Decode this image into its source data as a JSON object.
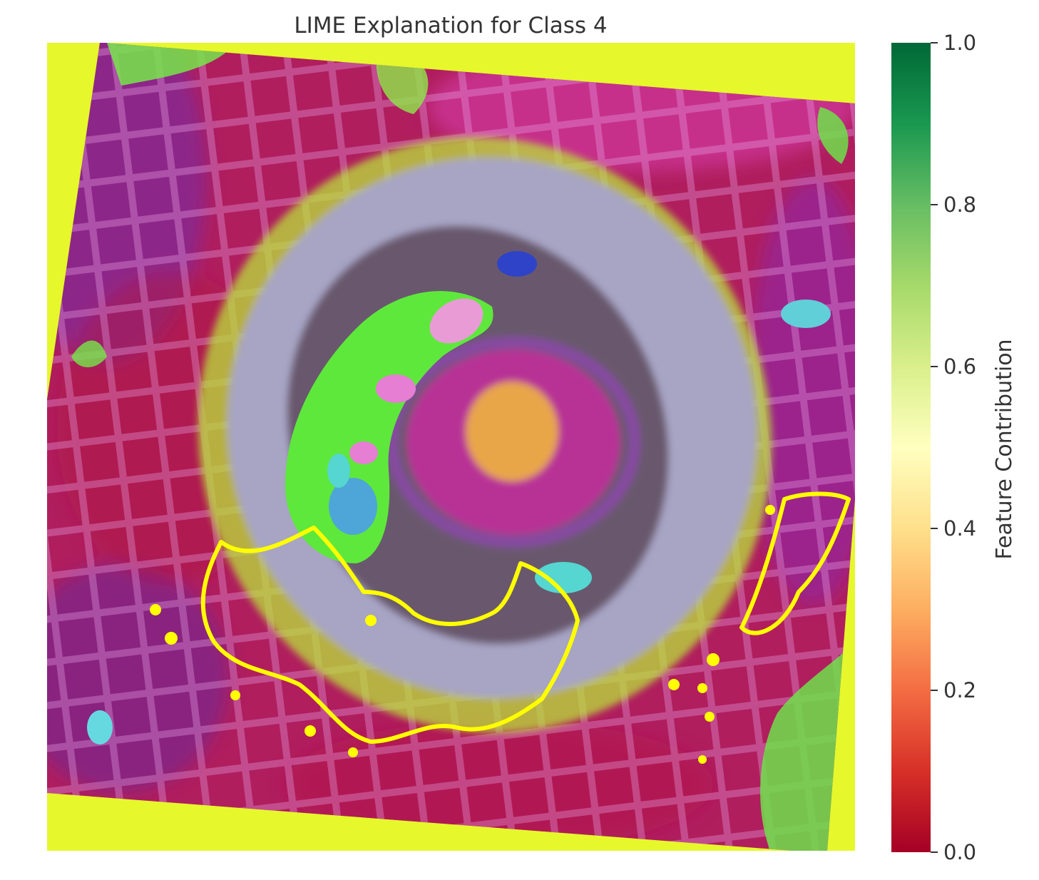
{
  "chart_data": {
    "type": "heatmap",
    "title": "LIME Explanation for Class 4",
    "xlabel": "",
    "ylabel": "",
    "grid": false,
    "colorbar": {
      "label": "Feature Contribution",
      "colormap": "RdYlGn",
      "range": [
        0.0,
        1.0
      ],
      "ticks": [
        0.0,
        0.2,
        0.4,
        0.6,
        0.8,
        1.0
      ],
      "tick_labels": [
        "0.0",
        "0.2",
        "0.4",
        "0.6",
        "0.8",
        "1.0"
      ],
      "color_stops": [
        {
          "value": 0.0,
          "color": "#a50026"
        },
        {
          "value": 0.1,
          "color": "#d73027"
        },
        {
          "value": 0.2,
          "color": "#f46d43"
        },
        {
          "value": 0.3,
          "color": "#fdae61"
        },
        {
          "value": 0.4,
          "color": "#fee08b"
        },
        {
          "value": 0.5,
          "color": "#ffffbf"
        },
        {
          "value": 0.6,
          "color": "#d9ef8b"
        },
        {
          "value": 0.7,
          "color": "#a6d96a"
        },
        {
          "value": 0.8,
          "color": "#66bd63"
        },
        {
          "value": 0.9,
          "color": "#1a9850"
        },
        {
          "value": 1.0,
          "color": "#006837"
        }
      ]
    },
    "image": {
      "background_fill_color": "#e6f72c",
      "rotation_deg": -7,
      "base_color": "#b01e5e",
      "regions": [
        {
          "kind": "outer-magenta-field",
          "color": "#c2288a"
        },
        {
          "kind": "gray-ring",
          "color": "#a7a4c4"
        },
        {
          "kind": "dark-inner-ring",
          "color": "#5a4658"
        },
        {
          "kind": "green-crescent",
          "color": "#5ee83c"
        },
        {
          "kind": "orange-core",
          "color": "#e9a64a"
        },
        {
          "kind": "yellow-boundary",
          "color": "#ffff00"
        },
        {
          "kind": "cyan-patches",
          "color": "#55d6d0"
        }
      ]
    }
  }
}
